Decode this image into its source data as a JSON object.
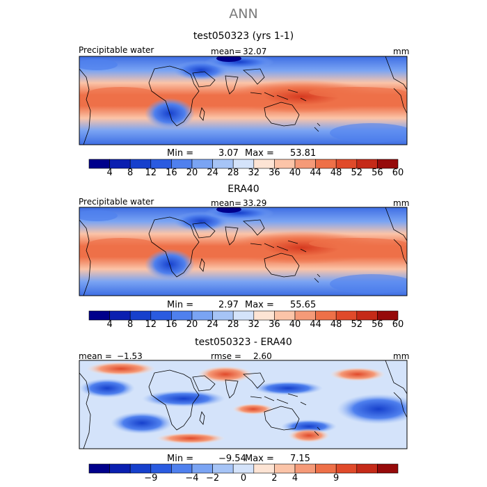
{
  "page": {
    "title": "ANN"
  },
  "panels": [
    {
      "title": "test050323 (yrs 1-1)",
      "variable": "Precipitable water",
      "mean_label": "mean=",
      "mean_value": "32.07",
      "units": "mm",
      "min_label": "Min =",
      "min_value": "3.07",
      "max_label": "Max =",
      "max_value": "53.81"
    },
    {
      "title": "ERA40",
      "variable": "Precipitable water",
      "mean_label": "mean=",
      "mean_value": "33.29",
      "units": "mm",
      "min_label": "Min =",
      "min_value": "2.97",
      "max_label": "Max =",
      "max_value": "55.65"
    },
    {
      "title": "test050323 - ERA40",
      "mean_label": "mean =",
      "mean_value": "−1.53",
      "rmse_label": "rmse =",
      "rmse_value": "2.60",
      "units": "mm",
      "min_label": "Min =",
      "min_value": "−9.54",
      "max_label": "Max =",
      "max_value": "7.15"
    }
  ],
  "colorbars": {
    "absolute": {
      "colors": [
        "#00008b",
        "#0a1fb0",
        "#1640cc",
        "#2a5be0",
        "#4f80ee",
        "#7aa4f3",
        "#a6c4f6",
        "#d4e3fa",
        "#fde4d4",
        "#fbc4a8",
        "#f59a78",
        "#ee7048",
        "#e04a2a",
        "#c52a18",
        "#960a0a"
      ],
      "ticks": [
        "4",
        "8",
        "12",
        "16",
        "20",
        "24",
        "28",
        "32",
        "36",
        "40",
        "44",
        "48",
        "52",
        "56",
        "60"
      ]
    },
    "difference": {
      "colors": [
        "#00008b",
        "#0a1fb0",
        "#1640cc",
        "#2a5be0",
        "#4f80ee",
        "#7aa4f3",
        "#a6c4f6",
        "#d4e3fa",
        "#fde4d4",
        "#fbc4a8",
        "#f59a78",
        "#ee7048",
        "#e04a2a",
        "#c52a18",
        "#960a0a"
      ],
      "ticks": [
        "−9",
        "−4",
        "−2",
        "0",
        "2",
        "4",
        "9"
      ]
    }
  },
  "chart_data": [
    {
      "type": "heatmap",
      "title": "test050323 (yrs 1-1)",
      "field": "Precipitable water",
      "units": "mm",
      "mean": 32.07,
      "min": 3.07,
      "max": 53.81,
      "levels": [
        4,
        8,
        12,
        16,
        20,
        24,
        28,
        32,
        36,
        40,
        44,
        48,
        52,
        56,
        60
      ]
    },
    {
      "type": "heatmap",
      "title": "ERA40",
      "field": "Precipitable water",
      "units": "mm",
      "mean": 33.29,
      "min": 2.97,
      "max": 55.65,
      "levels": [
        4,
        8,
        12,
        16,
        20,
        24,
        28,
        32,
        36,
        40,
        44,
        48,
        52,
        56,
        60
      ]
    },
    {
      "type": "heatmap",
      "title": "test050323 - ERA40",
      "units": "mm",
      "mean": -1.53,
      "rmse": 2.6,
      "min": -9.54,
      "max": 7.15,
      "levels": [
        -9,
        -4,
        -2,
        0,
        2,
        4,
        9
      ]
    }
  ]
}
